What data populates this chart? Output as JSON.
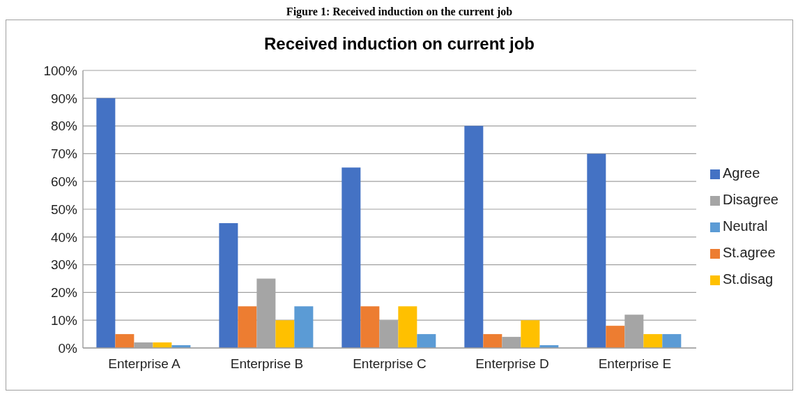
{
  "chart_data": {
    "type": "bar",
    "title": "Received induction on current job",
    "annotations": [
      "Figure 1: Received induction on the current job"
    ],
    "categories": [
      "Enterprise A",
      "Enterprise B",
      "Enterprise C",
      "Enterprise D",
      "Enterprise E"
    ],
    "series": [
      {
        "name": "Agree",
        "color": "#4472c4",
        "values": [
          90,
          45,
          65,
          80,
          70
        ]
      },
      {
        "name": "St.agree",
        "color": "#ed7d31",
        "values": [
          5,
          15,
          15,
          5,
          8
        ]
      },
      {
        "name": "Disagree",
        "color": "#a5a5a5",
        "values": [
          2,
          25,
          10,
          4,
          12
        ]
      },
      {
        "name": "St.disag",
        "color": "#ffc000",
        "values": [
          2,
          10,
          15,
          10,
          5
        ]
      },
      {
        "name": "Neutral",
        "color": "#5b9bd5",
        "values": [
          1,
          15,
          5,
          1,
          5
        ]
      }
    ],
    "ylim": [
      0,
      100
    ],
    "yticks": [
      {
        "value": 0,
        "label": "0%"
      },
      {
        "value": 10,
        "label": "10%"
      },
      {
        "value": 20,
        "label": "20%"
      },
      {
        "value": 30,
        "label": "30%"
      },
      {
        "value": 40,
        "label": "40%"
      },
      {
        "value": 50,
        "label": "50%"
      },
      {
        "value": 60,
        "label": "60%"
      },
      {
        "value": 70,
        "label": "70%"
      },
      {
        "value": 80,
        "label": "80%"
      },
      {
        "value": 90,
        "label": "90%"
      },
      {
        "value": 100,
        "label": "100%"
      }
    ],
    "grid": "y",
    "legend": "right"
  }
}
